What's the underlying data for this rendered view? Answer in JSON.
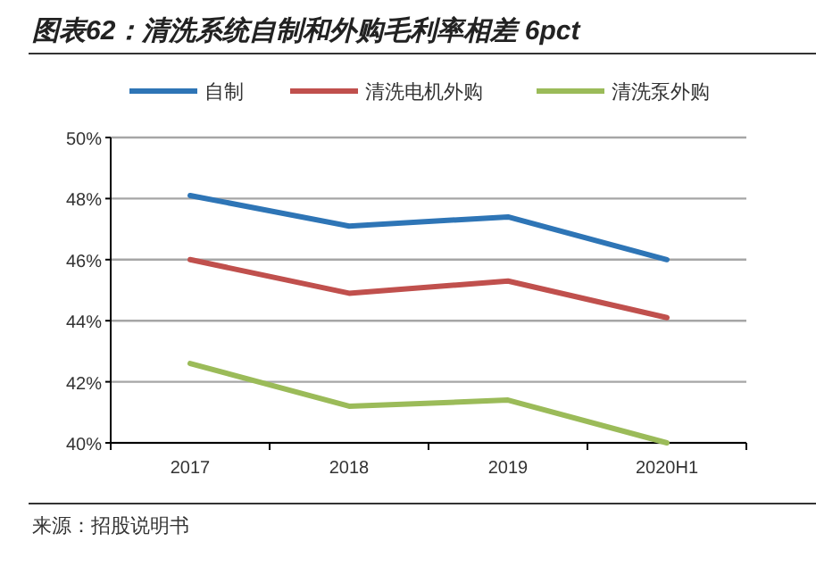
{
  "chart_data": {
    "type": "line",
    "title": "图表62：清洗系统自制和外购毛利率相差 6pct",
    "categories": [
      "2017",
      "2018",
      "2019",
      "2020H1"
    ],
    "series": [
      {
        "name": "自制",
        "color": "#2e75b6",
        "values": [
          48.1,
          47.1,
          47.4,
          46.0
        ]
      },
      {
        "name": "清洗电机外购",
        "color": "#c0504d",
        "values": [
          46.0,
          44.9,
          45.3,
          44.1
        ]
      },
      {
        "name": "清洗泵外购",
        "color": "#9bbb59",
        "values": [
          42.6,
          41.2,
          41.4,
          40.0
        ]
      }
    ],
    "ylim": [
      40,
      50
    ],
    "yticks": [
      {
        "value": 40,
        "label": "40%"
      },
      {
        "value": 42,
        "label": "42%"
      },
      {
        "value": 44,
        "label": "44%"
      },
      {
        "value": 46,
        "label": "46%"
      },
      {
        "value": 48,
        "label": "48%"
      },
      {
        "value": 50,
        "label": "50%"
      }
    ],
    "grid": "y",
    "legend": "top",
    "annotations": [
      "来源：招股说明书"
    ]
  }
}
